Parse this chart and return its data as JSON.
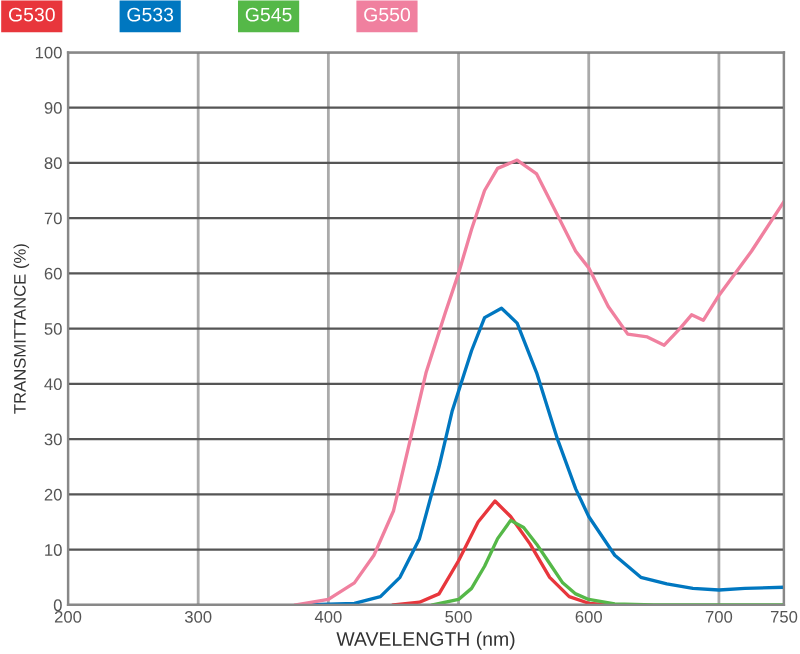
{
  "chart_data": {
    "type": "line",
    "xlabel": "WAVELENGTH (nm)",
    "ylabel": "TRANSMITTANCE (%)",
    "xlim": [
      200,
      750
    ],
    "ylim": [
      0,
      100
    ],
    "xticks": [
      200,
      300,
      400,
      500,
      600,
      700,
      750
    ],
    "yticks": [
      0,
      10,
      20,
      30,
      40,
      50,
      60,
      70,
      80,
      90,
      100
    ],
    "grid": true,
    "legend": "top",
    "marker": "none",
    "line_style": "solid",
    "series": [
      {
        "name": "G530",
        "color": "#e8363c",
        "x": [
          450,
          470,
          485,
          500,
          515,
          528,
          540,
          555,
          570,
          585,
          600,
          620
        ],
        "values": [
          0,
          0.5,
          2,
          8,
          15,
          18.8,
          16,
          11,
          5,
          1.5,
          0.3,
          0
        ]
      },
      {
        "name": "G533",
        "color": "#0077c0",
        "x": [
          380,
          420,
          440,
          455,
          470,
          485,
          495,
          510,
          520,
          533,
          545,
          560,
          576,
          590,
          600,
          620,
          640,
          660,
          680,
          700,
          720,
          750
        ],
        "values": [
          0,
          0.3,
          1.5,
          5,
          12,
          25,
          35,
          46,
          52,
          53.7,
          51,
          42,
          30,
          21,
          16,
          9,
          5,
          3.8,
          3,
          2.7,
          3,
          3.2
        ]
      },
      {
        "name": "G545",
        "color": "#55b848",
        "x": [
          480,
          500,
          510,
          520,
          530,
          540,
          550,
          560,
          570,
          580,
          590,
          600,
          620,
          650,
          750
        ],
        "values": [
          0,
          1,
          3,
          7,
          12,
          15.3,
          14,
          11,
          7.5,
          4,
          2,
          1,
          0.2,
          0,
          0
        ]
      },
      {
        "name": "G550",
        "color": "#f0809f",
        "x": [
          375,
          400,
          420,
          435,
          450,
          463,
          475,
          490,
          500,
          510,
          520,
          530,
          545,
          560,
          575,
          590,
          600,
          615,
          630,
          645,
          658,
          670,
          679,
          688,
          700,
          725,
          750
        ],
        "values": [
          0,
          1,
          4,
          9,
          17,
          30,
          42,
          53,
          60,
          68,
          75,
          79,
          80.5,
          78,
          71,
          64,
          61,
          54,
          49,
          48.5,
          47,
          50,
          52.5,
          51.5,
          56,
          64,
          73
        ]
      }
    ]
  }
}
